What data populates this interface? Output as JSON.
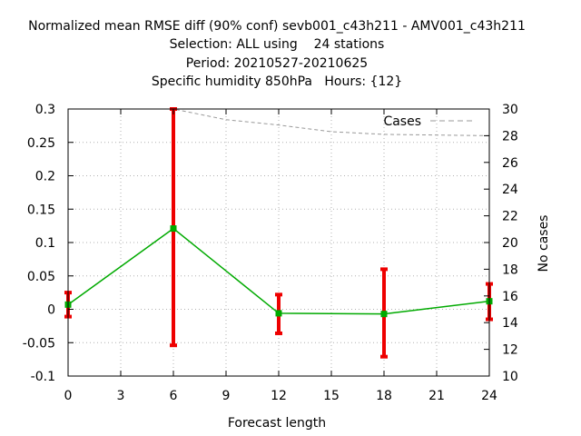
{
  "chart_data": {
    "type": "line",
    "title_lines": [
      "Normalized mean RMSE diff (90% conf) sevb001_c43h211 - AMV001_c43h211",
      "Selection: ALL using    24 stations",
      "Period: 20210527-20210625",
      "Specific humidity 850hPa   Hours: {12}"
    ],
    "xlabel": "Forecast length",
    "ylabel": "",
    "y2label": "No cases",
    "xlim": [
      0,
      24
    ],
    "ylim": [
      -0.1,
      0.3
    ],
    "y2lim": [
      10,
      30
    ],
    "x_ticks": [
      0,
      3,
      6,
      9,
      12,
      15,
      18,
      21,
      24
    ],
    "y_ticks": [
      "-0.1",
      "-0.05",
      "0",
      "0.05",
      "0.1",
      "0.15",
      "0.2",
      "0.25",
      "0.3"
    ],
    "y_tick_values": [
      -0.1,
      -0.05,
      0,
      0.05,
      0.1,
      0.15,
      0.2,
      0.25,
      0.3
    ],
    "y2_ticks": [
      10,
      12,
      14,
      16,
      18,
      20,
      22,
      24,
      26,
      28,
      30
    ],
    "grid": true,
    "legend": {
      "label": "Cases",
      "position": "top-right"
    },
    "series": [
      {
        "name": "",
        "color": "#00aa00",
        "x": [
          0,
          6,
          12,
          18,
          24
        ],
        "values": [
          0.007,
          0.121,
          -0.006,
          -0.007,
          0.012
        ],
        "err_low": [
          -0.011,
          -0.054,
          -0.036,
          -0.071,
          -0.015
        ],
        "err_high": [
          0.025,
          0.3,
          0.022,
          0.06,
          0.038
        ]
      },
      {
        "name": "Cases",
        "axis": "y2",
        "color": "#999999",
        "x": [
          0,
          6,
          9,
          12,
          15,
          18,
          24
        ],
        "values": [
          30,
          30,
          29.2,
          28.8,
          28.3,
          28.1,
          28
        ]
      }
    ],
    "errorbar_color": "#ee0000"
  }
}
